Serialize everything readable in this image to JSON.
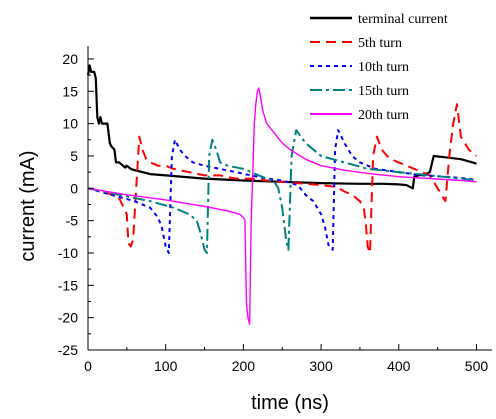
{
  "chart_data": {
    "type": "line",
    "title": "",
    "xlabel": "time (ns)",
    "ylabel": "current (mA)",
    "xlim": [
      0,
      520
    ],
    "ylim": [
      -25,
      22
    ],
    "xticks": [
      0,
      100,
      200,
      300,
      400,
      500
    ],
    "yticks": [
      -25,
      -20,
      -15,
      -10,
      -5,
      0,
      5,
      10,
      15,
      20
    ],
    "grid": false,
    "legend_position": "top-right",
    "series": [
      {
        "name": "terminal current",
        "color": "#000000",
        "dash": "solid",
        "x": [
          0,
          2,
          4,
          8,
          10,
          12,
          14,
          16,
          18,
          25,
          28,
          30,
          34,
          36,
          40,
          45,
          48,
          50,
          55,
          60,
          70,
          80,
          100,
          150,
          200,
          250,
          300,
          350,
          380,
          400,
          410,
          418,
          420,
          425,
          435,
          440,
          445,
          460,
          480,
          495,
          500
        ],
        "y": [
          17.5,
          19,
          18,
          18,
          17,
          11,
          10,
          11,
          10,
          10,
          7,
          6.5,
          6,
          4,
          4,
          3.5,
          3.2,
          3.5,
          3,
          2.8,
          2.5,
          2.2,
          2,
          1.5,
          1.2,
          1,
          0.8,
          0.7,
          0.7,
          0.6,
          0.5,
          0,
          1.8,
          2,
          2.2,
          2.5,
          5,
          4.8,
          4.5,
          4,
          3.8
        ]
      },
      {
        "name": "5th turn",
        "color": "#ff0000",
        "dash": "10,6",
        "x": [
          0,
          20,
          40,
          50,
          52,
          55,
          58,
          62,
          66,
          70,
          75,
          80,
          90,
          100,
          110,
          130,
          150,
          170,
          190,
          210,
          230,
          250,
          270,
          300,
          320,
          330,
          340,
          350,
          355,
          358,
          360,
          363,
          367,
          372,
          378,
          385,
          390,
          400,
          410,
          420,
          430,
          440,
          450,
          460,
          465,
          470,
          475,
          480,
          490,
          500
        ],
        "y": [
          0,
          -0.5,
          -1.5,
          -4,
          -8.5,
          -9,
          -8,
          0,
          8,
          6,
          4.5,
          4,
          3.5,
          3.5,
          3,
          2.5,
          2,
          2,
          1.5,
          1.5,
          1.2,
          1,
          0.8,
          0.5,
          0.2,
          -0.5,
          -1,
          -2,
          -3,
          -6,
          -9,
          -10,
          5,
          8,
          6,
          5,
          4.5,
          4,
          3.5,
          3,
          2.5,
          2,
          0,
          -2,
          5,
          10,
          13,
          8,
          6,
          5
        ]
      },
      {
        "name": "10th turn",
        "color": "#0000ff",
        "dash": "4,4",
        "x": [
          0,
          30,
          60,
          80,
          90,
          95,
          100,
          104,
          108,
          112,
          118,
          125,
          135,
          150,
          170,
          190,
          210,
          230,
          250,
          270,
          280,
          290,
          300,
          305,
          310,
          315,
          318,
          322,
          330,
          340,
          350,
          370,
          400,
          430,
          460,
          490,
          500
        ],
        "y": [
          0,
          -1,
          -2,
          -3,
          -4.5,
          -6,
          -9,
          -10,
          5,
          7.5,
          6,
          5,
          4,
          3.5,
          3,
          2.5,
          2,
          1.5,
          1.2,
          0.5,
          -1,
          -2,
          -4,
          -6,
          -9,
          -9.5,
          6,
          9,
          7,
          5,
          4,
          3,
          2.5,
          2,
          1.8,
          1.5,
          1.2
        ]
      },
      {
        "name": "15th turn",
        "color": "#008080",
        "dash": "12,4,3,4",
        "x": [
          0,
          40,
          80,
          110,
          130,
          140,
          145,
          150,
          153,
          156,
          160,
          165,
          170,
          180,
          200,
          220,
          240,
          245,
          250,
          255,
          258,
          262,
          268,
          280,
          300,
          330,
          360,
          400,
          440,
          480,
          500
        ],
        "y": [
          0,
          -1,
          -2,
          -3,
          -4,
          -5,
          -7,
          -9.5,
          -10,
          5,
          7.5,
          6,
          4,
          3.5,
          3,
          2,
          1,
          0,
          -3,
          -8,
          -9.5,
          5,
          9,
          7,
          5,
          4,
          3,
          2.5,
          2,
          1.5,
          1.2
        ]
      },
      {
        "name": "20th turn",
        "color": "#ff00ff",
        "dash": "solid",
        "x": [
          0,
          50,
          100,
          150,
          180,
          195,
          200,
          202,
          204,
          206,
          208,
          210,
          212,
          214,
          216,
          218,
          220,
          225,
          230,
          240,
          250,
          260,
          280,
          300,
          330,
          360,
          400,
          440,
          480,
          500
        ],
        "y": [
          0,
          -1,
          -1.8,
          -2.8,
          -3.5,
          -4,
          -4.5,
          -5,
          -18,
          -20,
          -21,
          -5,
          2,
          10,
          13,
          15,
          15.5,
          12,
          10,
          8.5,
          7,
          6,
          4.5,
          3.5,
          2.8,
          2.3,
          1.8,
          1.5,
          1.2,
          1
        ]
      }
    ]
  }
}
